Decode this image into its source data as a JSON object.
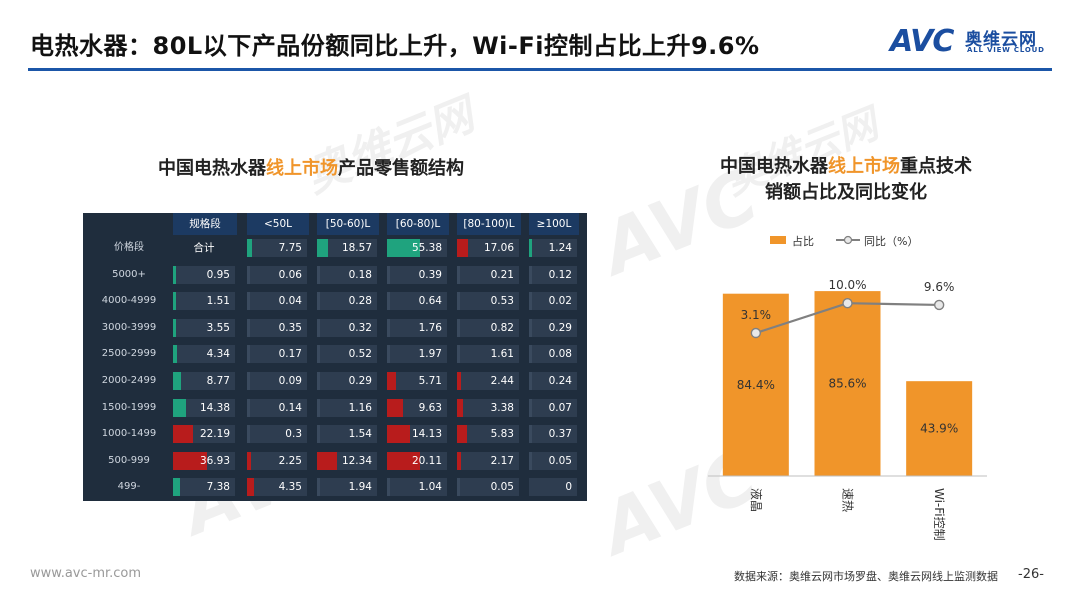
{
  "title": "电热水器：80L以下产品份额同比上升，Wi-Fi控制占比上升9.6%",
  "logo": {
    "mark": "AVC",
    "cn": "奥维云网",
    "en": "ALL VIEW CLOUD"
  },
  "watermark": {
    "mark": "AVC",
    "cn": "奥维云网",
    "en": "ALL VIEW CLOUD"
  },
  "left_panel": {
    "title_pre": "中国电热水器",
    "title_hl": "线上市场",
    "title_post": "产品零售额结构",
    "table": {
      "columns": [
        "规格段",
        "<50L",
        "[50-60)L",
        "[60-80)L",
        "[80-100)L",
        "≥100L"
      ],
      "rows": [
        {
          "label": "价格段",
          "cells": [
            "合计",
            "7.75",
            "18.57",
            "55.38",
            "17.06",
            "1.24"
          ]
        },
        {
          "label": "5000+",
          "cells": [
            "0.95",
            "0.06",
            "0.18",
            "0.39",
            "0.21",
            "0.12"
          ]
        },
        {
          "label": "4000-4999",
          "cells": [
            "1.51",
            "0.04",
            "0.28",
            "0.64",
            "0.53",
            "0.02"
          ]
        },
        {
          "label": "3000-3999",
          "cells": [
            "3.55",
            "0.35",
            "0.32",
            "1.76",
            "0.82",
            "0.29"
          ]
        },
        {
          "label": "2500-2999",
          "cells": [
            "4.34",
            "0.17",
            "0.52",
            "1.97",
            "1.61",
            "0.08"
          ]
        },
        {
          "label": "2000-2499",
          "cells": [
            "8.77",
            "0.09",
            "0.29",
            "5.71",
            "2.44",
            "0.24"
          ]
        },
        {
          "label": "1500-1999",
          "cells": [
            "14.38",
            "0.14",
            "1.16",
            "9.63",
            "3.38",
            "0.07"
          ]
        },
        {
          "label": "1000-1499",
          "cells": [
            "22.19",
            "0.3",
            "1.54",
            "14.13",
            "5.83",
            "0.37"
          ]
        },
        {
          "label": "500-999",
          "cells": [
            "36.93",
            "2.25",
            "12.34",
            "20.11",
            "2.17",
            "0.05"
          ]
        },
        {
          "label": "499-",
          "cells": [
            "7.38",
            "4.35",
            "1.94",
            "1.04",
            "0.05",
            "0"
          ]
        }
      ],
      "bar_colors": [
        "#1fa37e",
        "#1fa37e",
        "#1fa37e",
        "#1fa37e",
        "#1fa37e",
        "#1fa37e",
        "#1fa37e",
        "#b81c1c",
        "#b81c1c",
        "#1fa37e"
      ],
      "bar_color_up": "#1fa37e",
      "bar_color_down": "#b81c1c"
    }
  },
  "right_panel": {
    "title_line1_pre": "中国电热水器",
    "title_line1_hl": "线上市场",
    "title_line1_post": "重点技术",
    "title_line2": "销额占比及同比变化"
  },
  "chart_data": {
    "type": "bar",
    "categories": [
      "液晶",
      "速热",
      "Wi-Fi控制"
    ],
    "series": [
      {
        "name": "占比",
        "type": "bar",
        "values": [
          84.4,
          85.6,
          43.9
        ],
        "labels": [
          "84.4%",
          "85.6%",
          "43.9%"
        ],
        "color": "#f0952a"
      },
      {
        "name": "同比（%）",
        "type": "line",
        "values": [
          3.1,
          10.0,
          9.6
        ],
        "labels": [
          "3.1%",
          "10.0%",
          "9.6%"
        ],
        "color": "#808080"
      }
    ],
    "legend_position": "top",
    "grid": false,
    "ylim_bar": [
      0,
      100
    ],
    "ylim_line": [
      -30,
      20
    ]
  },
  "footer": {
    "url": "www.avc-mr.com",
    "source": "数据来源：奥维云网市场罗盘、奥维云网线上监测数据",
    "page": "-26-"
  }
}
